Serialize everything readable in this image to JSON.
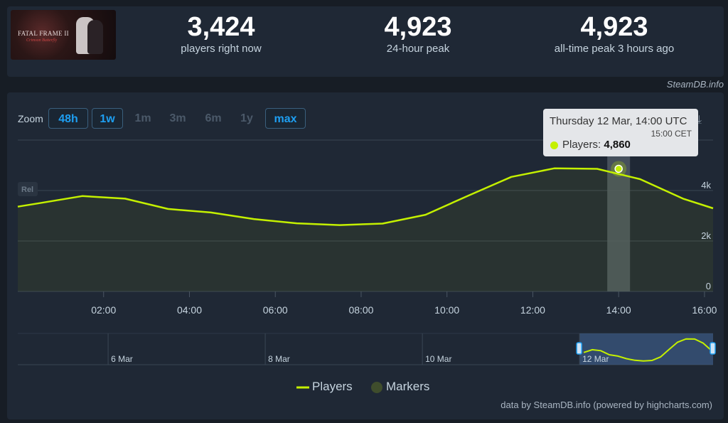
{
  "game": {
    "cover_title": "FATAL FRAME II",
    "cover_subtitle": "Crimson Butterfly"
  },
  "stats": [
    {
      "value": "3,424",
      "label": "players right now"
    },
    {
      "value": "4,923",
      "label": "24-hour peak"
    },
    {
      "value": "4,923",
      "label": "all-time peak 3 hours ago"
    }
  ],
  "credit_top": "SteamDB.info",
  "zoom": {
    "label": "Zoom",
    "buttons": [
      {
        "label": "48h",
        "active": true
      },
      {
        "label": "1w",
        "active": true
      },
      {
        "label": "1m",
        "active": false
      },
      {
        "label": "3m",
        "active": false
      },
      {
        "label": "6m",
        "active": false
      },
      {
        "label": "1y",
        "active": false
      },
      {
        "label": "max",
        "active": true
      }
    ]
  },
  "download_icon": "download-icon",
  "rel_label": "Rel",
  "tooltip": {
    "date_utc": "Thursday 12 Mar, 14:00 UTC",
    "date_local": "15:00 CET",
    "series_label": "Players:",
    "series_value": "4,860"
  },
  "legend": {
    "players": "Players",
    "markers": "Markers"
  },
  "credit_bottom": "data by SteamDB.info (powered by highcharts.com)",
  "colors": {
    "line": "#c4f000",
    "accent": "#1e9ff2",
    "background": "#171d25",
    "panel": "#1f2835"
  },
  "chart_data": {
    "type": "line",
    "x": [
      "01:00",
      "02:00",
      "03:00",
      "04:00",
      "05:00",
      "06:00",
      "07:00",
      "08:00",
      "09:00",
      "10:00",
      "11:00",
      "12:00",
      "13:00",
      "14:00",
      "15:00",
      "16:00"
    ],
    "x_hours": [
      0.5,
      1.5,
      2.5,
      3.5,
      4.5,
      5.5,
      6.5,
      7.5,
      8.5,
      9.5,
      10.5,
      11.5,
      12.5,
      13.5,
      14.5,
      15.5
    ],
    "series": [
      {
        "name": "Players",
        "values": [
          3500,
          3780,
          3680,
          3270,
          3130,
          2870,
          2700,
          2630,
          2690,
          3040,
          3800,
          4540,
          4880,
          4860,
          4450,
          3680
        ]
      }
    ],
    "xticks": [
      "02:00",
      "04:00",
      "06:00",
      "08:00",
      "10:00",
      "12:00",
      "14:00",
      "16:00"
    ],
    "xtick_hours": [
      2,
      4,
      6,
      8,
      10,
      12,
      14,
      16
    ],
    "yticks": [
      "0",
      "2k",
      "4k"
    ],
    "ytick_values": [
      0,
      2000,
      4000
    ],
    "ylim": [
      0,
      6000
    ],
    "xlim_hours": [
      0,
      16.2
    ],
    "highlight_hour": 14,
    "grid": true,
    "legend_position": "bottom",
    "navigator": {
      "labels": [
        "6 Mar",
        "8 Mar",
        "10 Mar",
        "12 Mar"
      ],
      "label_days": [
        6,
        8,
        10,
        12
      ],
      "xlim_days": [
        4.85,
        13.7
      ],
      "window_days": [
        12,
        13.7
      ]
    }
  }
}
